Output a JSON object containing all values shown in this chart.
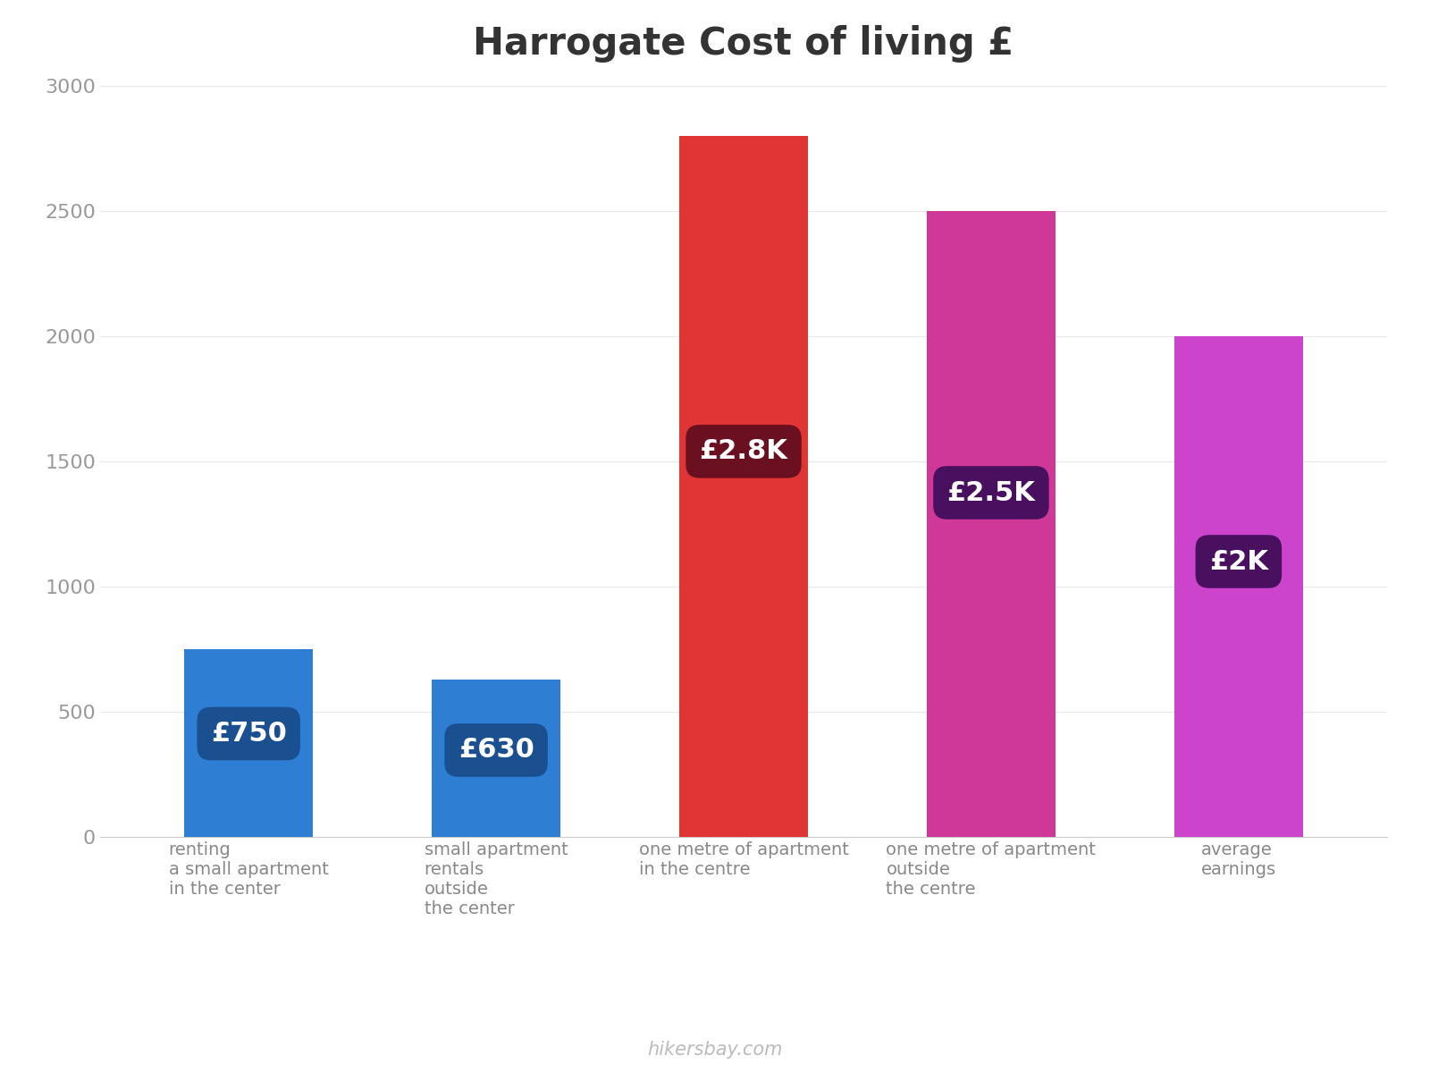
{
  "title": "Harrogate Cost of living £",
  "categories": [
    "renting\na small apartment\nin the center",
    "small apartment\nrentals\noutside\nthe center",
    "one metre of apartment\nin the centre",
    "one metre of apartment\noutside\nthe centre",
    "average\nearnings"
  ],
  "values": [
    750,
    630,
    2800,
    2500,
    2000
  ],
  "bar_colors": [
    "#2E7FD4",
    "#2E7FD4",
    "#E03535",
    "#D03898",
    "#CC44CC"
  ],
  "label_texts": [
    "£750",
    "£630",
    "£2.8K",
    "£2.5K",
    "£2K"
  ],
  "label_bg_colors": [
    "#1A4F90",
    "#1A4F90",
    "#6B1020",
    "#4A1060",
    "#4A1060"
  ],
  "ylim": [
    0,
    3000
  ],
  "yticks": [
    0,
    500,
    1000,
    1500,
    2000,
    2500,
    3000
  ],
  "background_color": "#ffffff",
  "title_fontsize": 30,
  "tick_fontsize": 16,
  "label_fontsize": 22,
  "xlabel_fontsize": 14,
  "watermark": "hikersbay.com",
  "watermark_color": "#bbbbbb"
}
